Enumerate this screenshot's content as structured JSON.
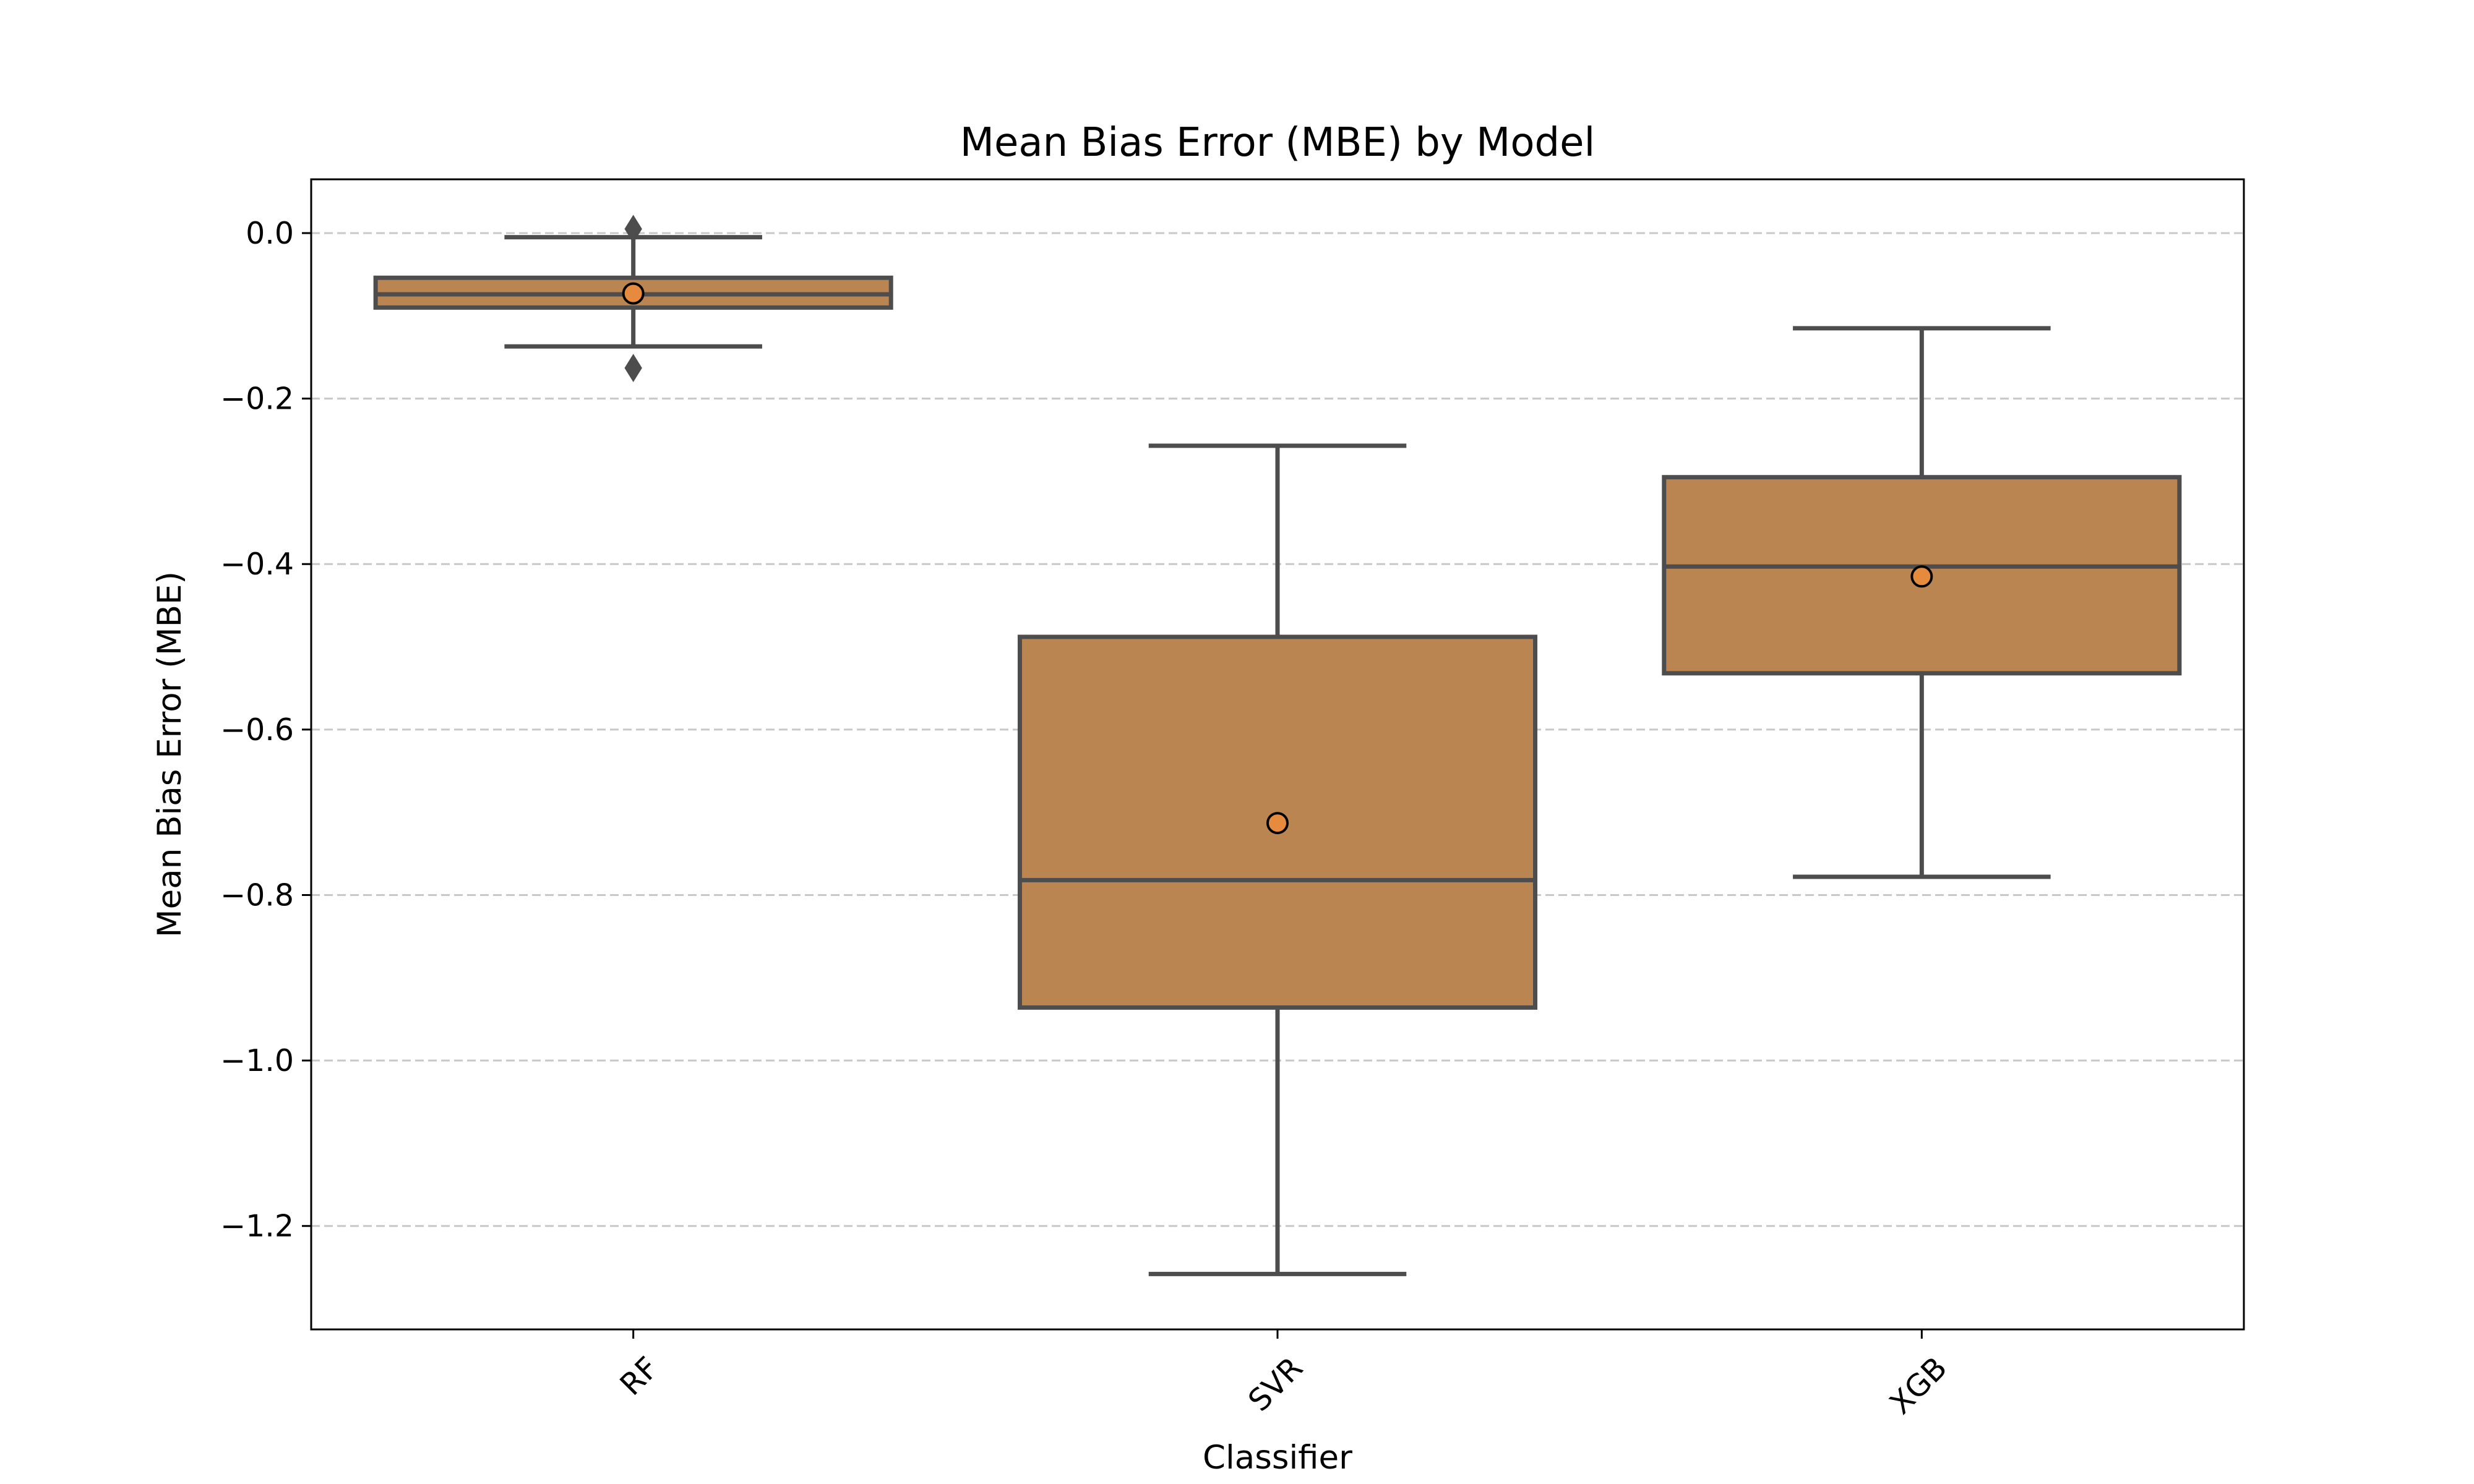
{
  "chart_data": {
    "type": "box",
    "title": "Mean Bias Error (MBE) by Model",
    "xlabel": "Classifier",
    "ylabel": "Mean Bias Error (MBE)",
    "ylim": [
      -1.325,
      0.065
    ],
    "yticks": [
      0.0,
      -0.2,
      -0.4,
      -0.6,
      -0.8,
      -1.0,
      -1.2
    ],
    "ytick_labels": [
      "0.0",
      "−0.2",
      "−0.4",
      "−0.6",
      "−0.8",
      "−1.0",
      "−1.2"
    ],
    "grid": "y-dashed",
    "categories": [
      "RF",
      "SVR",
      "XGB"
    ],
    "series": [
      {
        "category": "RF",
        "whisker_low": -0.137,
        "q1": -0.09,
        "median": -0.074,
        "q3": -0.054,
        "whisker_high": -0.005,
        "mean": -0.073,
        "outliers": [
          0.005,
          -0.163
        ]
      },
      {
        "category": "SVR",
        "whisker_low": -1.258,
        "q1": -0.936,
        "median": -0.782,
        "q3": -0.488,
        "whisker_high": -0.257,
        "mean": -0.713,
        "outliers": []
      },
      {
        "category": "XGB",
        "whisker_low": -0.778,
        "q1": -0.532,
        "median": -0.403,
        "q3": -0.295,
        "whisker_high": -0.115,
        "mean": -0.415,
        "outliers": []
      }
    ],
    "colors": {
      "box_fill": "#BB8551",
      "line": "#4D4D4D",
      "mean_marker_fill": "#E68A3E",
      "grid": "#C8C8C8",
      "frame": "#000000"
    }
  }
}
